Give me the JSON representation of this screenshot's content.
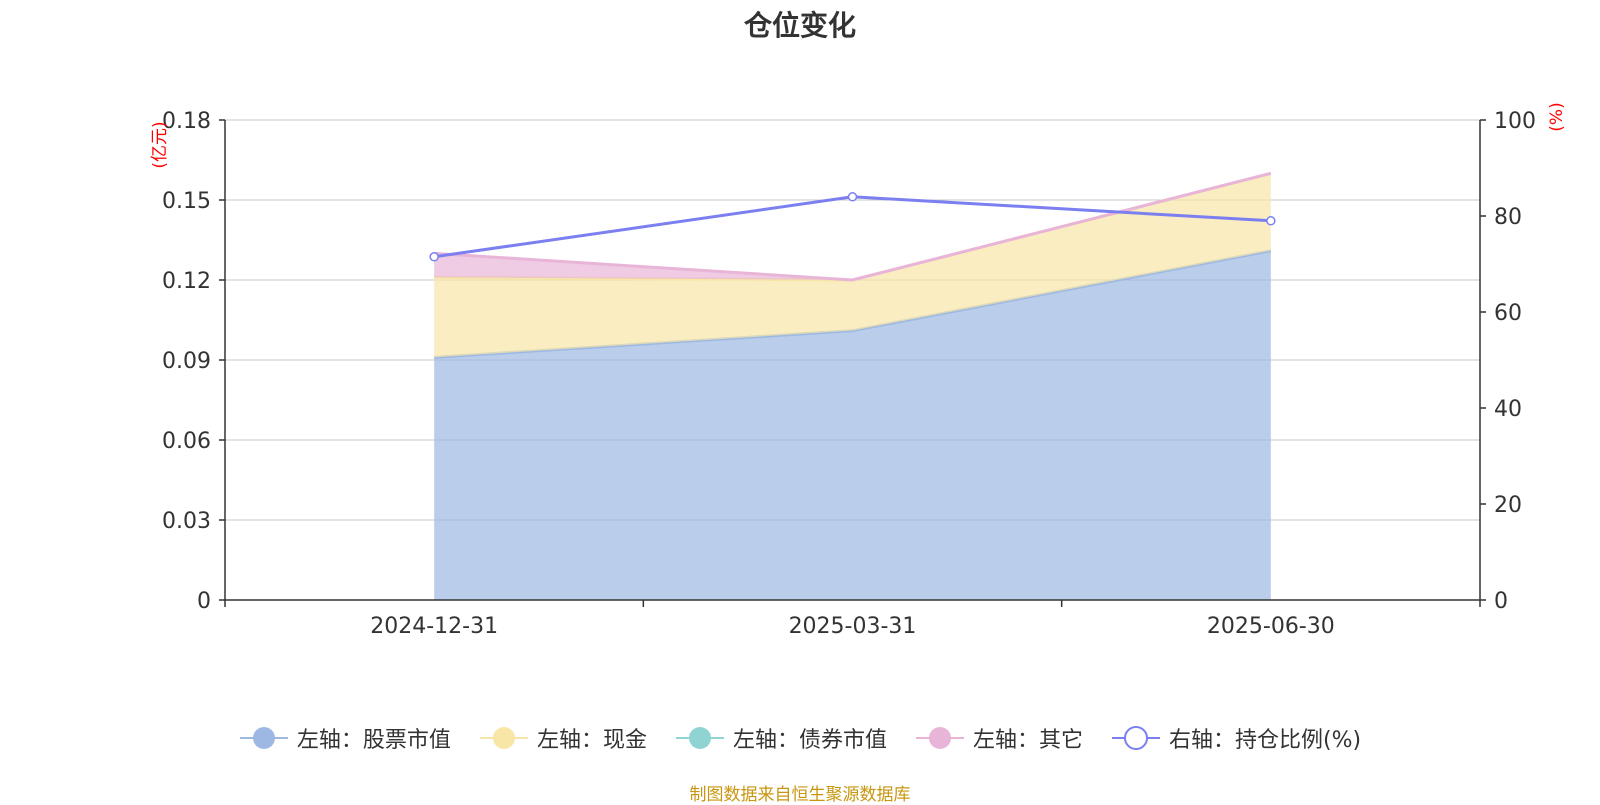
{
  "title": "仓位变化",
  "source_note": "制图数据来自恒生聚源数据库",
  "colors": {
    "stock": "#9db9e3",
    "cash": "#f7e6a6",
    "bond": "#8fd3d3",
    "other": "#e8b5d8",
    "ratio": "#7b7ff0",
    "axis_unit": "#ff0000",
    "grid": "#c8c8c8",
    "axis": "#333333"
  },
  "chart_data": {
    "type": "area",
    "categories": [
      "2024-12-31",
      "2025-03-31",
      "2025-06-30"
    ],
    "left_axis": {
      "unit_label": "(亿元)",
      "ylim": [
        0,
        0.18
      ],
      "ticks": [
        "0",
        "0.03",
        "0.06",
        "0.09",
        "0.12",
        "0.15",
        "0.18"
      ]
    },
    "right_axis": {
      "unit_label": "(%)",
      "ylim": [
        0,
        100
      ],
      "ticks": [
        "0",
        "20",
        "40",
        "60",
        "80",
        "100"
      ]
    },
    "series": [
      {
        "name": "左轴：股票市值",
        "key": "stock",
        "axis": "left",
        "stacked": true,
        "values": [
          0.091,
          0.101,
          0.131
        ]
      },
      {
        "name": "左轴：现金",
        "key": "cash",
        "axis": "left",
        "stacked": true,
        "values": [
          0.03,
          0.019,
          0.029
        ]
      },
      {
        "name": "左轴：债券市值",
        "key": "bond",
        "axis": "left",
        "stacked": true,
        "values": [
          0.0,
          0.0,
          0.0
        ]
      },
      {
        "name": "左轴：其它",
        "key": "other",
        "axis": "left",
        "stacked": true,
        "values": [
          0.009,
          0.0,
          0.0
        ]
      },
      {
        "name": "右轴：持仓比例(%)",
        "key": "ratio",
        "axis": "right",
        "stacked": false,
        "values": [
          71.5,
          84.0,
          79.0
        ]
      }
    ],
    "grid": true,
    "legend_position": "bottom"
  }
}
